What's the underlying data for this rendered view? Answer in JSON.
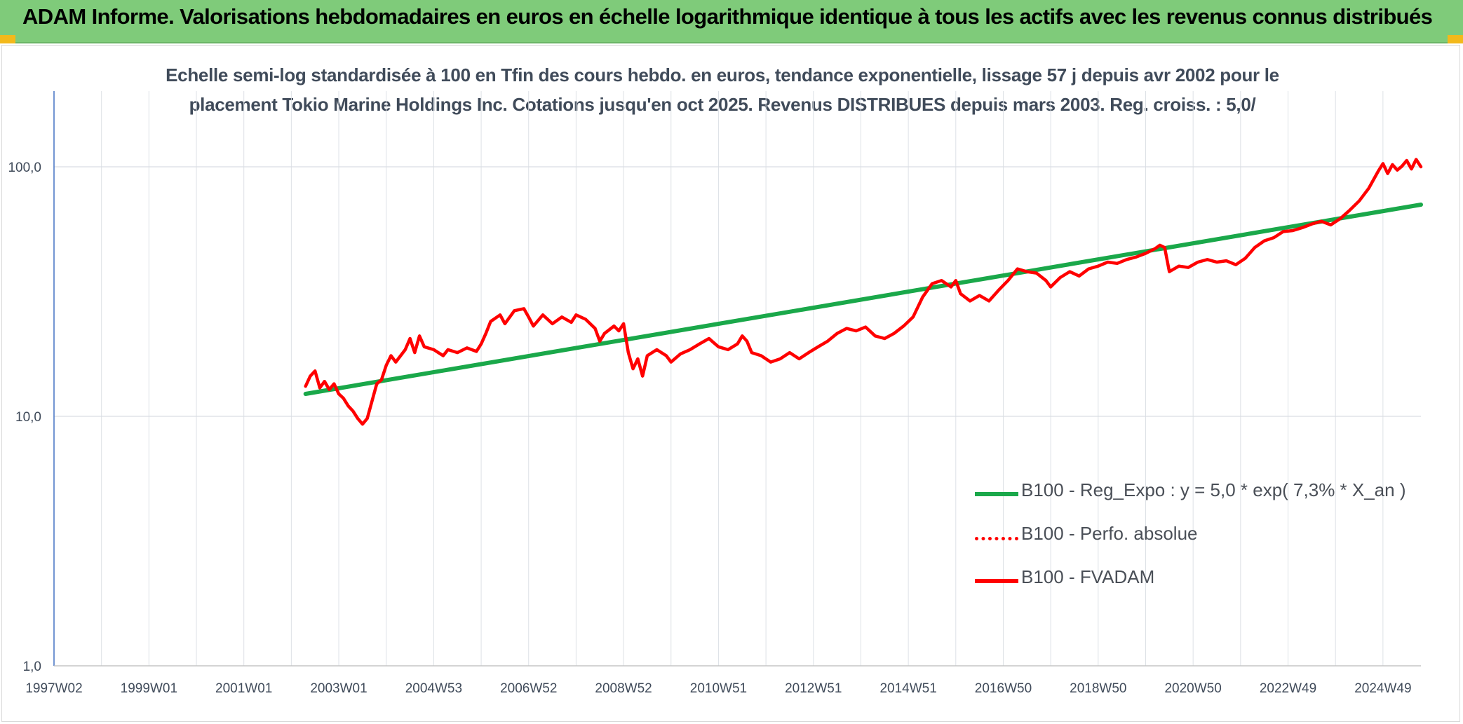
{
  "header": {
    "title": "ADAM Informe. Valorisations hebdomadaires en euros en échelle logarithmique identique à tous les actifs avec les revenus connus distribués"
  },
  "colors": {
    "banner": "#7fcb7a",
    "trend": "#1aa84a",
    "series": "#ff0000",
    "grid": "#d9dde3"
  },
  "chart_data": {
    "type": "line",
    "title_lines": [
      "Echelle semi-log standardisée à 100 en Tfin des cours hebdo. en euros, tendance exponentielle, lissage 57 j depuis avr 2002 pour le",
      "placement Tokio Marine Holdings Inc. Cotations jusqu'en oct 2025. Revenus DISTRIBUES depuis mars 2003. Reg. croiss. : 5,0/"
    ],
    "y_scale": "log",
    "ylim": [
      1,
      200
    ],
    "y_ticks": [
      {
        "value": 1,
        "label": "1,0"
      },
      {
        "value": 10,
        "label": "10,0"
      },
      {
        "value": 100,
        "label": "100,0"
      }
    ],
    "x_unit": "years",
    "xlim": [
      1997.0,
      2025.8
    ],
    "x_ticks": [
      {
        "x": 1997.0,
        "label": "1997W02"
      },
      {
        "x": 1999.0,
        "label": "1999W01"
      },
      {
        "x": 2001.0,
        "label": "2001W01"
      },
      {
        "x": 2003.0,
        "label": "2003W01"
      },
      {
        "x": 2005.0,
        "label": "2004W53"
      },
      {
        "x": 2007.0,
        "label": "2006W52"
      },
      {
        "x": 2009.0,
        "label": "2008W52"
      },
      {
        "x": 2011.0,
        "label": "2010W51"
      },
      {
        "x": 2013.0,
        "label": "2012W51"
      },
      {
        "x": 2015.0,
        "label": "2014W51"
      },
      {
        "x": 2017.0,
        "label": "2016W50"
      },
      {
        "x": 2019.0,
        "label": "2018W50"
      },
      {
        "x": 2021.0,
        "label": "2020W50"
      },
      {
        "x": 2023.0,
        "label": "2022W49"
      },
      {
        "x": 2025.0,
        "label": "2024W49"
      }
    ],
    "legend_position": "right-middle",
    "series": [
      {
        "name": "B100 - Reg_Expo : y = 5,0 * exp( 7,3% *  X_an )",
        "style": "trend",
        "points": [
          [
            2002.3,
            12.3
          ],
          [
            2025.8,
            70.5
          ]
        ]
      },
      {
        "name": "B100 - Perfo. absolue",
        "style": "dotted",
        "points": []
      },
      {
        "name": "B100 - FVADAM",
        "style": "solid",
        "points": [
          [
            2002.3,
            13.2
          ],
          [
            2002.4,
            14.5
          ],
          [
            2002.5,
            15.2
          ],
          [
            2002.6,
            13.0
          ],
          [
            2002.7,
            13.8
          ],
          [
            2002.8,
            12.8
          ],
          [
            2002.9,
            13.5
          ],
          [
            2003.0,
            12.3
          ],
          [
            2003.1,
            11.8
          ],
          [
            2003.2,
            11.0
          ],
          [
            2003.3,
            10.5
          ],
          [
            2003.4,
            9.8
          ],
          [
            2003.5,
            9.3
          ],
          [
            2003.6,
            9.8
          ],
          [
            2003.7,
            11.5
          ],
          [
            2003.8,
            13.5
          ],
          [
            2003.9,
            14.0
          ],
          [
            2004.0,
            16.0
          ],
          [
            2004.1,
            17.5
          ],
          [
            2004.2,
            16.5
          ],
          [
            2004.4,
            18.5
          ],
          [
            2004.5,
            20.5
          ],
          [
            2004.6,
            18.0
          ],
          [
            2004.7,
            21.0
          ],
          [
            2004.8,
            19.0
          ],
          [
            2005.0,
            18.5
          ],
          [
            2005.2,
            17.5
          ],
          [
            2005.3,
            18.5
          ],
          [
            2005.5,
            18.0
          ],
          [
            2005.7,
            18.8
          ],
          [
            2005.9,
            18.2
          ],
          [
            2006.0,
            19.5
          ],
          [
            2006.1,
            21.5
          ],
          [
            2006.2,
            24.0
          ],
          [
            2006.4,
            25.5
          ],
          [
            2006.5,
            23.5
          ],
          [
            2006.7,
            26.5
          ],
          [
            2006.9,
            27.0
          ],
          [
            2007.0,
            25.0
          ],
          [
            2007.1,
            23.0
          ],
          [
            2007.3,
            25.5
          ],
          [
            2007.5,
            23.5
          ],
          [
            2007.7,
            25.0
          ],
          [
            2007.9,
            23.8
          ],
          [
            2008.0,
            25.5
          ],
          [
            2008.2,
            24.5
          ],
          [
            2008.4,
            22.5
          ],
          [
            2008.5,
            20.0
          ],
          [
            2008.6,
            21.5
          ],
          [
            2008.8,
            23.0
          ],
          [
            2008.9,
            22.0
          ],
          [
            2009.0,
            23.5
          ],
          [
            2009.1,
            18.0
          ],
          [
            2009.2,
            15.5
          ],
          [
            2009.3,
            17.0
          ],
          [
            2009.4,
            14.5
          ],
          [
            2009.5,
            17.5
          ],
          [
            2009.7,
            18.5
          ],
          [
            2009.9,
            17.5
          ],
          [
            2010.0,
            16.5
          ],
          [
            2010.2,
            17.8
          ],
          [
            2010.4,
            18.5
          ],
          [
            2010.6,
            19.5
          ],
          [
            2010.8,
            20.5
          ],
          [
            2011.0,
            19.0
          ],
          [
            2011.2,
            18.5
          ],
          [
            2011.4,
            19.5
          ],
          [
            2011.5,
            21.0
          ],
          [
            2011.6,
            20.0
          ],
          [
            2011.7,
            18.0
          ],
          [
            2011.9,
            17.5
          ],
          [
            2012.1,
            16.5
          ],
          [
            2012.3,
            17.0
          ],
          [
            2012.5,
            18.0
          ],
          [
            2012.7,
            17.0
          ],
          [
            2012.9,
            18.0
          ],
          [
            2013.1,
            19.0
          ],
          [
            2013.3,
            20.0
          ],
          [
            2013.5,
            21.5
          ],
          [
            2013.7,
            22.5
          ],
          [
            2013.9,
            22.0
          ],
          [
            2014.1,
            22.8
          ],
          [
            2014.3,
            21.0
          ],
          [
            2014.5,
            20.5
          ],
          [
            2014.7,
            21.5
          ],
          [
            2014.9,
            23.0
          ],
          [
            2015.1,
            25.0
          ],
          [
            2015.3,
            30.0
          ],
          [
            2015.5,
            34.0
          ],
          [
            2015.7,
            35.0
          ],
          [
            2015.9,
            33.0
          ],
          [
            2016.0,
            35.0
          ],
          [
            2016.1,
            31.0
          ],
          [
            2016.3,
            29.0
          ],
          [
            2016.5,
            30.5
          ],
          [
            2016.7,
            29.0
          ],
          [
            2016.9,
            32.0
          ],
          [
            2017.1,
            35.0
          ],
          [
            2017.3,
            39.0
          ],
          [
            2017.5,
            38.0
          ],
          [
            2017.7,
            37.5
          ],
          [
            2017.9,
            35.0
          ],
          [
            2018.0,
            33.0
          ],
          [
            2018.2,
            36.0
          ],
          [
            2018.4,
            38.0
          ],
          [
            2018.6,
            36.5
          ],
          [
            2018.8,
            39.0
          ],
          [
            2019.0,
            40.0
          ],
          [
            2019.2,
            41.5
          ],
          [
            2019.4,
            41.0
          ],
          [
            2019.6,
            42.5
          ],
          [
            2019.8,
            43.5
          ],
          [
            2020.0,
            45.0
          ],
          [
            2020.2,
            47.0
          ],
          [
            2020.3,
            48.5
          ],
          [
            2020.4,
            47.5
          ],
          [
            2020.5,
            38.0
          ],
          [
            2020.7,
            40.0
          ],
          [
            2020.9,
            39.5
          ],
          [
            2021.1,
            41.5
          ],
          [
            2021.3,
            42.5
          ],
          [
            2021.5,
            41.5
          ],
          [
            2021.7,
            42.0
          ],
          [
            2021.9,
            40.5
          ],
          [
            2022.1,
            43.0
          ],
          [
            2022.3,
            47.5
          ],
          [
            2022.5,
            50.5
          ],
          [
            2022.7,
            52.0
          ],
          [
            2022.9,
            55.0
          ],
          [
            2023.1,
            55.5
          ],
          [
            2023.3,
            57.0
          ],
          [
            2023.5,
            59.0
          ],
          [
            2023.7,
            60.5
          ],
          [
            2023.9,
            58.5
          ],
          [
            2024.1,
            62.0
          ],
          [
            2024.3,
            67.0
          ],
          [
            2024.5,
            73.0
          ],
          [
            2024.7,
            82.0
          ],
          [
            2024.9,
            96.0
          ],
          [
            2025.0,
            103.0
          ],
          [
            2025.1,
            94.0
          ],
          [
            2025.2,
            102.0
          ],
          [
            2025.3,
            97.0
          ],
          [
            2025.4,
            100.5
          ],
          [
            2025.5,
            106.0
          ],
          [
            2025.6,
            98.0
          ],
          [
            2025.7,
            107.0
          ],
          [
            2025.8,
            100.0
          ]
        ]
      }
    ]
  }
}
